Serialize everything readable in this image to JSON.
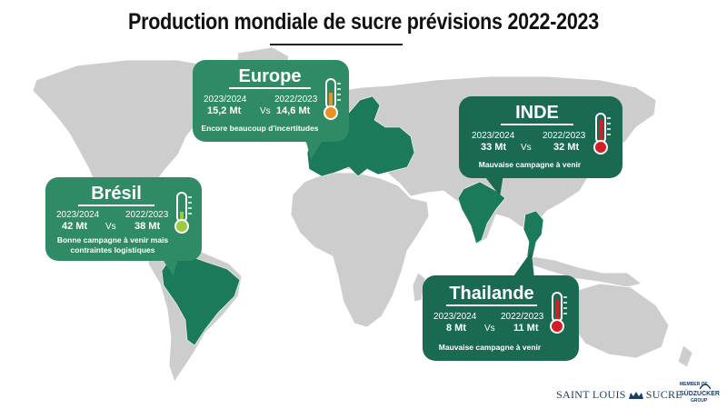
{
  "title": "Production mondiale de sucre prévisions 2022-2023",
  "regions": {
    "europe": {
      "name": "Europe",
      "year_new": "2023/2024",
      "value_new": "15,2 Mt",
      "vs": "Vs",
      "year_old": "2022/2023",
      "value_old": "14,6 Mt",
      "note": "Encore beaucoup d'incertitudes",
      "thermo_color": "#ee8f23"
    },
    "inde": {
      "name": "INDE",
      "year_new": "2023/2024",
      "value_new": "33 Mt",
      "vs": "Vs",
      "year_old": "2022/2023",
      "value_old": "32 Mt",
      "note": "Mauvaise campagne à venir",
      "thermo_color": "#d21f26"
    },
    "bresil": {
      "name": "Brésil",
      "year_new": "2023/2024",
      "value_new": "42 Mt",
      "vs": "Vs",
      "year_old": "2022/2023",
      "value_old": "38 Mt",
      "note": "Bonne campagne à venir mais contraintes logistiques",
      "thermo_color": "#9ccb3b"
    },
    "thailande": {
      "name": "Thailande",
      "year_new": "2023/2024",
      "value_new": "8 Mt",
      "vs": "Vs",
      "year_old": "2022/2023",
      "value_old": "11 Mt",
      "note": "Mauvaise campagne à venir",
      "thermo_color": "#d21f26"
    }
  },
  "colors": {
    "bubble": "#1a6a52",
    "bubble_light": "#2f8b66",
    "highlight": "#1b7a5a",
    "land": "#cdcdcd"
  },
  "logo": {
    "saint_louis": "SAINT LOUIS",
    "sucre": "SUCRE",
    "group_top": "MEMBER OF",
    "group_name": "SÜDZUCKER",
    "group_bottom": "GROUP"
  }
}
